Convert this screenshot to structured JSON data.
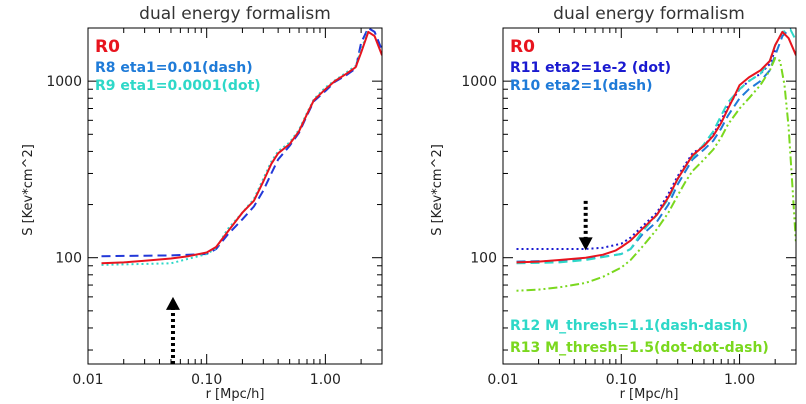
{
  "chart_data": [
    {
      "type": "line",
      "title": "dual energy formalism",
      "xlabel": "r [Mpc/h]",
      "ylabel": "S [Kev*cm^2]",
      "xscale": "log",
      "yscale": "log",
      "xlim": [
        0.01,
        3
      ],
      "ylim": [
        25,
        2000
      ],
      "xticks": [
        "0.01",
        "0.10",
        "1.00"
      ],
      "yticks": [
        "100",
        "1000"
      ],
      "legend": [
        {
          "text": "R0",
          "color": "#e8141e",
          "big": true
        },
        {
          "text": "R8 eta1=0.01(dash)",
          "color": "#1f7bd8"
        },
        {
          "text": "R9 eta1=0.0001(dot)",
          "color": "#2ed8c8"
        }
      ],
      "arrow": {
        "x": 0.052,
        "y_from": 25,
        "y_to": 60,
        "direction": "up"
      },
      "series": [
        {
          "name": "R0",
          "color": "#e8141e",
          "style": "solid",
          "x": [
            0.013,
            0.02,
            0.03,
            0.05,
            0.07,
            0.1,
            0.12,
            0.15,
            0.2,
            0.25,
            0.3,
            0.35,
            0.4,
            0.5,
            0.6,
            0.7,
            0.8,
            1.0,
            1.2,
            1.5,
            1.8,
            2.0,
            2.3,
            2.6,
            3.0
          ],
          "y": [
            93,
            94,
            96,
            99,
            102,
            107,
            115,
            140,
            180,
            210,
            270,
            340,
            390,
            440,
            520,
            650,
            780,
            900,
            1000,
            1100,
            1200,
            1450,
            1900,
            1800,
            1400
          ]
        },
        {
          "name": "R8",
          "color": "#2238d8",
          "style": "dash",
          "x": [
            0.013,
            0.05,
            0.1,
            0.12,
            0.15,
            0.2,
            0.25,
            0.3,
            0.35,
            0.4,
            0.5,
            0.6,
            0.7,
            0.8,
            1.0,
            1.2,
            1.5,
            1.8,
            2.0,
            2.3,
            2.6,
            3.0
          ],
          "y": [
            102,
            103,
            105,
            112,
            135,
            165,
            195,
            240,
            300,
            360,
            430,
            510,
            640,
            770,
            880,
            990,
            1080,
            1180,
            1650,
            2000,
            1900,
            1500
          ]
        },
        {
          "name": "R9",
          "color": "#2ed8c8",
          "style": "dot",
          "x": [
            0.013,
            0.05,
            0.1,
            0.12,
            0.15,
            0.2,
            0.25,
            0.3,
            0.35,
            0.4,
            0.5,
            0.6,
            0.7,
            0.8,
            1.0,
            1.2,
            1.5,
            1.8,
            2.0,
            2.3
          ],
          "y": [
            91,
            93,
            105,
            113,
            145,
            180,
            215,
            280,
            350,
            400,
            450,
            530,
            660,
            790,
            920,
            1010,
            1120,
            1220,
            1500,
            1950
          ]
        }
      ]
    },
    {
      "type": "line",
      "title": "dual energy formalism",
      "xlabel": "r [Mpc/h]",
      "ylabel": "S [Kev*cm^2]",
      "xscale": "log",
      "yscale": "log",
      "xlim": [
        0.01,
        3
      ],
      "ylim": [
        25,
        2000
      ],
      "xticks": [
        "0.01",
        "0.10",
        "1.00"
      ],
      "yticks": [
        "100",
        "1000"
      ],
      "legend": [
        {
          "text": "R0",
          "color": "#e8141e",
          "big": true
        },
        {
          "text": "R11 eta2=1e-2 (dot)",
          "color": "#1a1ad0"
        },
        {
          "text": "R10 eta2=1(dash)",
          "color": "#1f7bd8"
        }
      ],
      "legend2": [
        {
          "text": "R12 M_thresh=1.1(dash-dash)",
          "color": "#2ed8c8"
        },
        {
          "text": "R13 M_thresh=1.5(dot-dot-dash)",
          "color": "#7ad81e"
        }
      ],
      "arrow": {
        "x": 0.05,
        "y_from": 210,
        "y_to": 110,
        "direction": "down"
      },
      "series": [
        {
          "name": "R0",
          "color": "#e8141e",
          "style": "solid",
          "x": [
            0.013,
            0.02,
            0.03,
            0.05,
            0.07,
            0.09,
            0.1,
            0.12,
            0.15,
            0.2,
            0.25,
            0.3,
            0.35,
            0.4,
            0.5,
            0.6,
            0.7,
            0.8,
            0.9,
            1.0,
            1.2,
            1.5,
            1.8,
            2.0,
            2.3,
            2.6,
            3.0
          ],
          "y": [
            94,
            95,
            97,
            100,
            104,
            110,
            115,
            125,
            145,
            175,
            220,
            280,
            330,
            380,
            430,
            490,
            580,
            700,
            820,
            950,
            1050,
            1150,
            1300,
            1600,
            1900,
            1750,
            1400
          ]
        },
        {
          "name": "R11",
          "color": "#1a1ad0",
          "style": "dot",
          "x": [
            0.013,
            0.03,
            0.05,
            0.07,
            0.1,
            0.12,
            0.15,
            0.2,
            0.25,
            0.3,
            0.4,
            0.5,
            0.6,
            0.7,
            0.8,
            1.0,
            1.2,
            1.5,
            1.8,
            2.0
          ],
          "y": [
            112,
            112,
            112,
            114,
            120,
            130,
            150,
            180,
            230,
            290,
            390,
            430,
            500,
            600,
            720,
            900,
            1000,
            1100,
            1250,
            1500
          ]
        },
        {
          "name": "R10",
          "color": "#1f7bd8",
          "style": "dash",
          "x": [
            0.013,
            0.03,
            0.05,
            0.1,
            0.12,
            0.15,
            0.2,
            0.25,
            0.3,
            0.35,
            0.4,
            0.5,
            0.6,
            0.7,
            0.8,
            1.0,
            1.2,
            1.5,
            1.8,
            2.0,
            2.3,
            2.7
          ],
          "y": [
            95,
            96,
            98,
            105,
            112,
            135,
            160,
            200,
            260,
            310,
            360,
            410,
            460,
            540,
            640,
            800,
            900,
            1000,
            1150,
            1400,
            1800,
            2000
          ]
        },
        {
          "name": "R12",
          "color": "#2ed8c8",
          "style": "dash",
          "x": [
            0.013,
            0.03,
            0.05,
            0.1,
            0.12,
            0.15,
            0.2,
            0.25,
            0.3,
            0.35,
            0.4,
            0.5,
            0.6,
            0.7,
            0.8,
            1.0,
            1.2,
            1.5,
            1.8,
            2.0,
            2.3,
            2.7,
            3.0
          ],
          "y": [
            93,
            94,
            97,
            105,
            112,
            140,
            175,
            215,
            280,
            330,
            370,
            440,
            520,
            640,
            760,
            900,
            1000,
            1100,
            1300,
            1600,
            1900,
            1950,
            1700
          ]
        },
        {
          "name": "R13",
          "color": "#7ad81e",
          "style": "dot-dot-dash",
          "x": [
            0.013,
            0.02,
            0.03,
            0.05,
            0.07,
            0.1,
            0.12,
            0.15,
            0.2,
            0.25,
            0.3,
            0.35,
            0.4,
            0.5,
            0.6,
            0.7,
            0.8,
            1.0,
            1.2,
            1.5,
            1.8,
            2.0,
            2.2,
            2.4,
            2.6,
            2.8,
            3.0
          ],
          "y": [
            65,
            66,
            68,
            72,
            78,
            88,
            97,
            115,
            145,
            180,
            225,
            270,
            310,
            360,
            410,
            480,
            570,
            700,
            800,
            950,
            1150,
            1350,
            1300,
            950,
            550,
            250,
            120
          ]
        }
      ]
    }
  ]
}
